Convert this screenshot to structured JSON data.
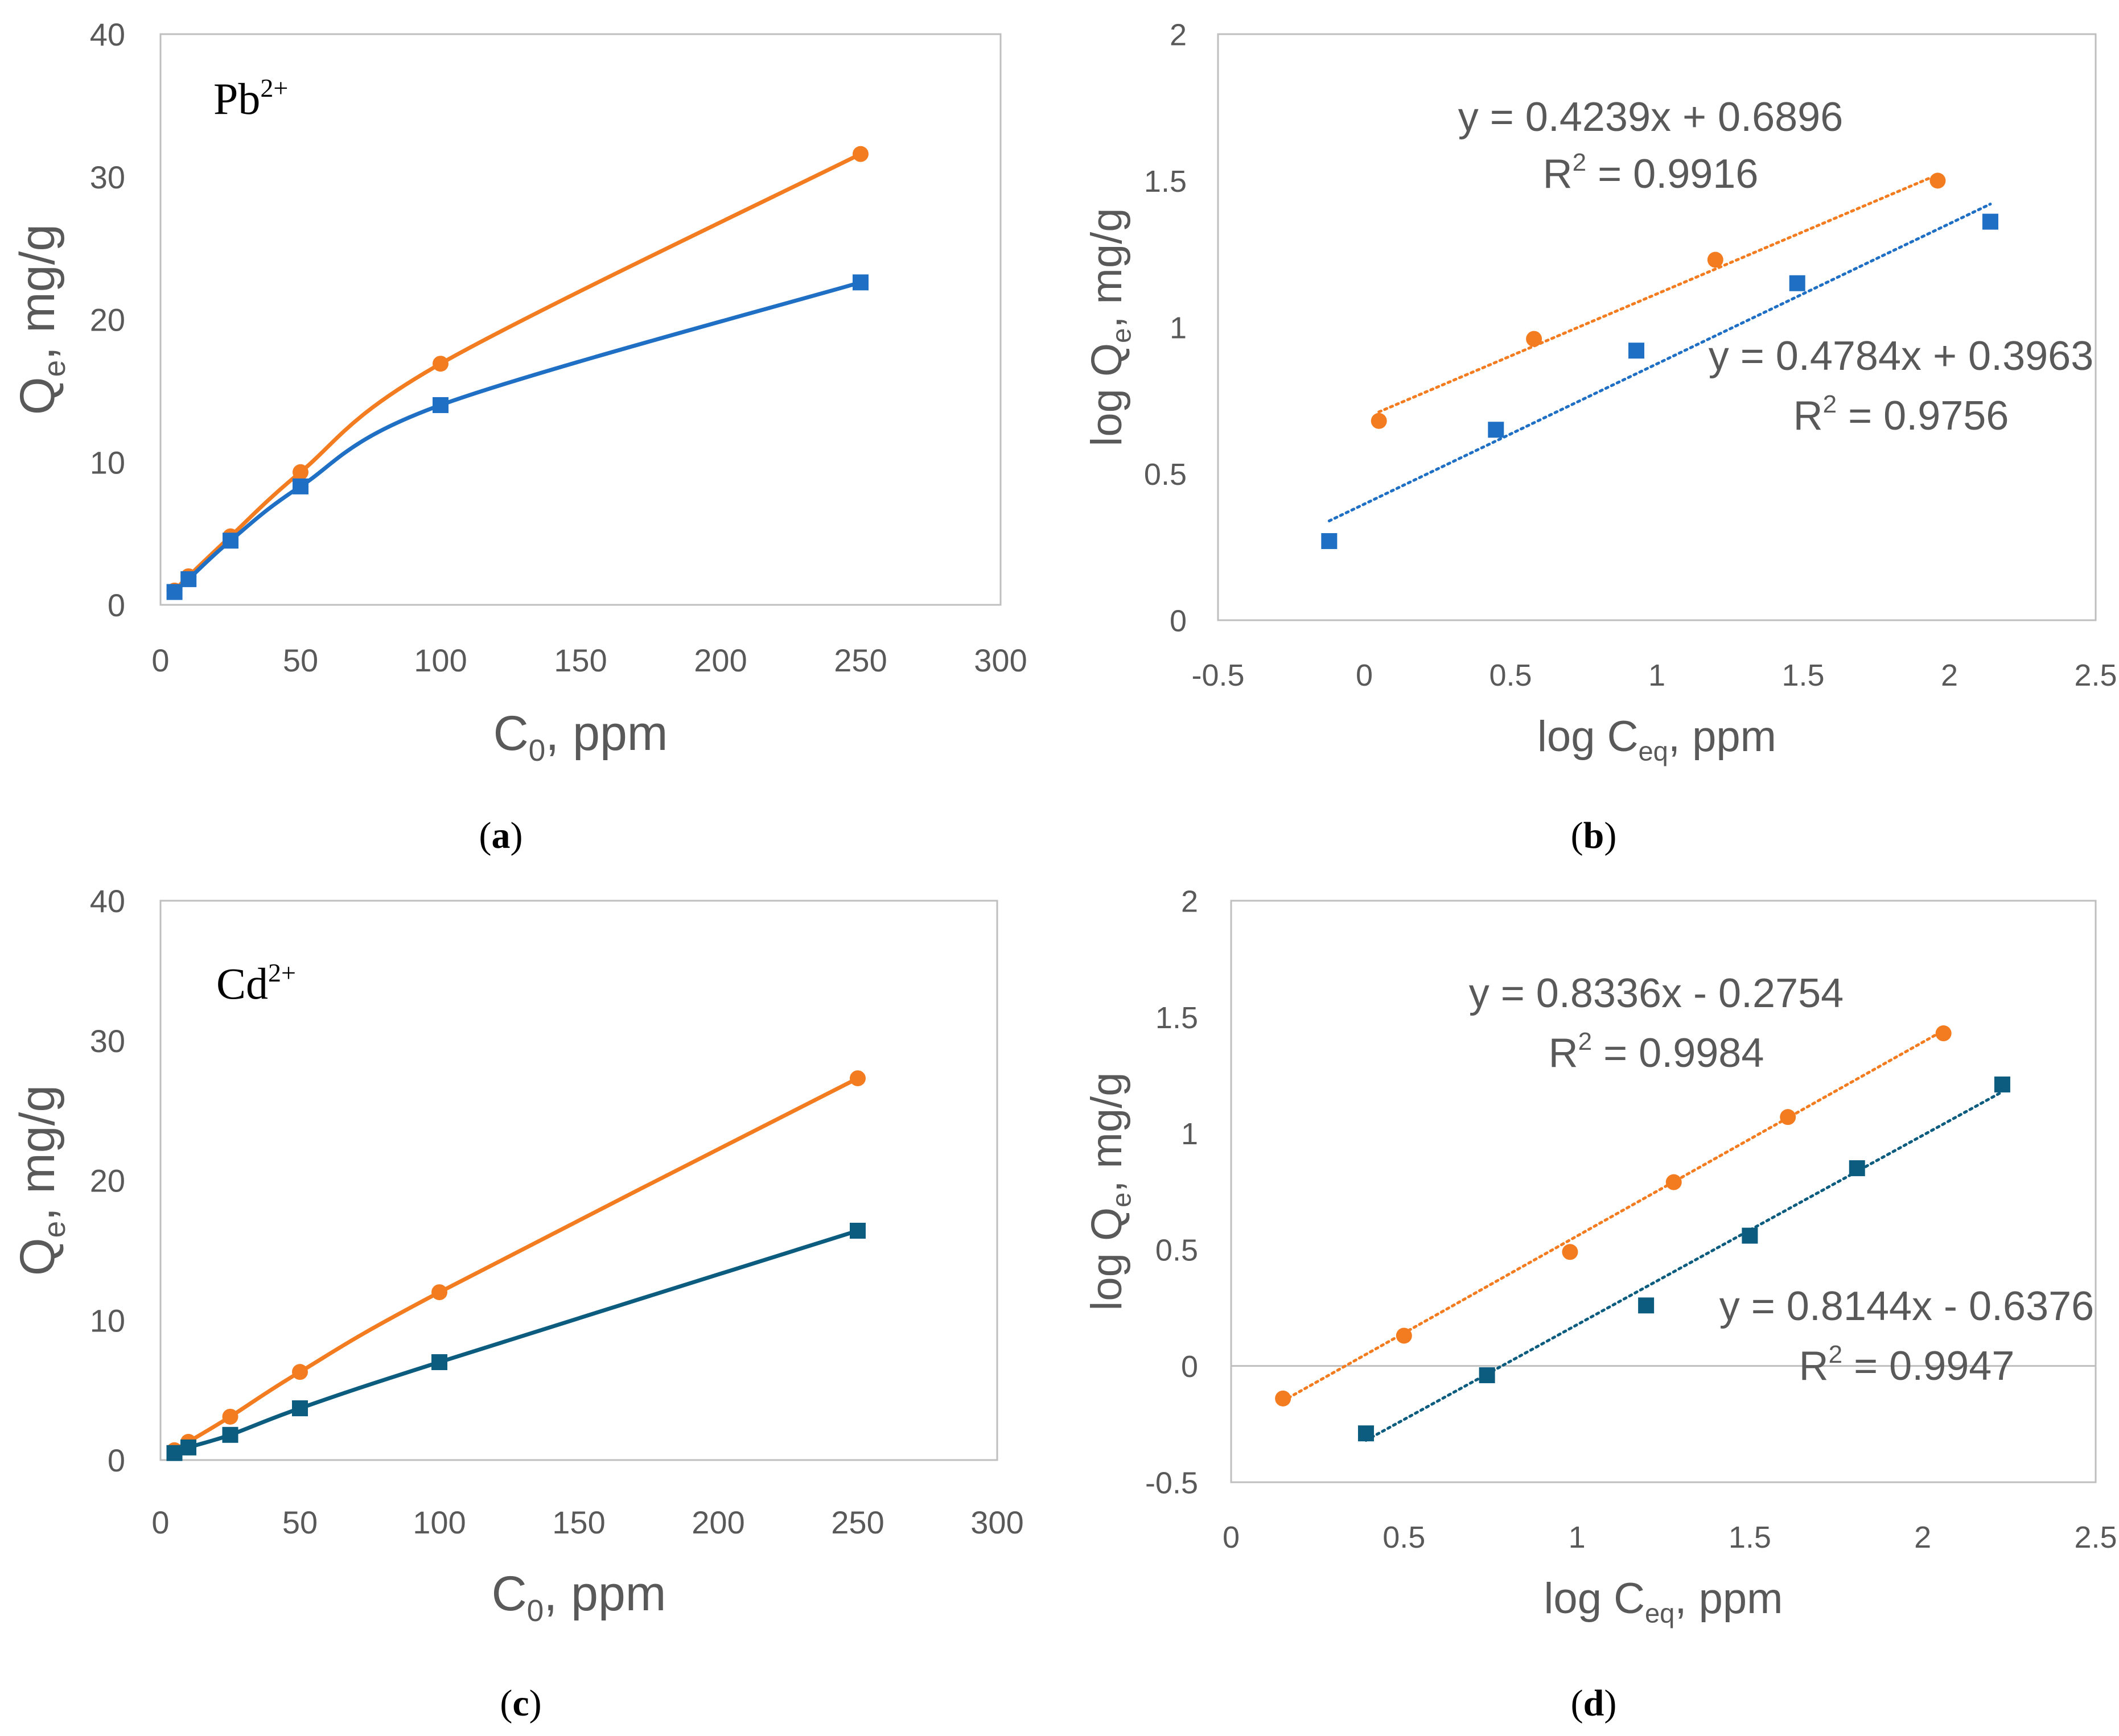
{
  "figure": {
    "panels": [
      {
        "label": "a",
        "label_open": "(",
        "label_close": ")"
      },
      {
        "label": "b",
        "label_open": "(",
        "label_close": ")"
      },
      {
        "label": "c",
        "label_open": "(",
        "label_close": ")"
      },
      {
        "label": "d",
        "label_open": "(",
        "label_close": ")"
      }
    ]
  },
  "colors": {
    "orange": "#F47C20",
    "blue": "#1F6FC4",
    "teal": "#0B5C7E",
    "axis_text": "#595959",
    "grid": "#D9D9D9",
    "frame": "#BFBFBF"
  },
  "chart_data": [
    {
      "id": "a",
      "type": "line",
      "smooth": true,
      "annotation": {
        "ion": "Pb",
        "charge": "2+"
      },
      "xlabel": {
        "main": "C",
        "sub": "0",
        "rest": ", ppm"
      },
      "ylabel": {
        "main": "Q",
        "sub": "e",
        "rest": ", mg/g"
      },
      "xlim": [
        0,
        300
      ],
      "ylim": [
        0,
        40
      ],
      "xticks": [
        0,
        50,
        100,
        150,
        200,
        250,
        300
      ],
      "yticks": [
        0,
        10,
        20,
        30,
        40
      ],
      "grid": false,
      "series": [
        {
          "name": "orange",
          "color": "#F47C20",
          "marker": "circle",
          "x": [
            5,
            10,
            25,
            50,
            100,
            250
          ],
          "y": [
            1.0,
            2.0,
            4.8,
            9.3,
            16.9,
            31.6
          ]
        },
        {
          "name": "blue",
          "color": "#1F6FC4",
          "marker": "square",
          "x": [
            5,
            10,
            25,
            50,
            100,
            250
          ],
          "y": [
            0.9,
            1.8,
            4.5,
            8.3,
            14.0,
            22.6
          ]
        }
      ]
    },
    {
      "id": "b",
      "type": "scatter",
      "xlabel": {
        "main": "log C",
        "sub": "eq",
        "rest": ", ppm"
      },
      "ylabel": {
        "main": "log Q",
        "sub": "e",
        "rest": ", mg/g"
      },
      "xlim": [
        -0.5,
        2.5
      ],
      "ylim": [
        0,
        2
      ],
      "xticks": [
        -0.5,
        0,
        0.5,
        1,
        1.5,
        2,
        2.5
      ],
      "yticks": [
        0,
        0.5,
        1,
        1.5,
        2
      ],
      "xtick_labels": [
        "-0.5",
        "0",
        "0.5",
        "1",
        "1.5",
        "2",
        "2.5"
      ],
      "ytick_labels": [
        "0",
        "0.5",
        "1",
        "1.5",
        "2"
      ],
      "grid": false,
      "series": [
        {
          "name": "orange",
          "color": "#F47C20",
          "marker": "circle",
          "x": [
            0.05,
            0.58,
            1.2,
            1.96
          ],
          "y": [
            0.68,
            0.96,
            1.23,
            1.5
          ],
          "trendline": {
            "slope": 0.4239,
            "intercept": 0.6896,
            "x_range": [
              0.05,
              1.96
            ]
          },
          "equation": "y = 0.4239x + 0.6896",
          "r2_label": "R",
          "r2_sup": "2",
          "r2_value": " = 0.9916"
        },
        {
          "name": "blue",
          "color": "#1F6FC4",
          "marker": "square",
          "x": [
            -0.12,
            0.45,
            0.93,
            1.48,
            2.14
          ],
          "y": [
            0.27,
            0.65,
            0.92,
            1.15,
            1.36
          ],
          "trendline": {
            "slope": 0.4784,
            "intercept": 0.3963,
            "x_range": [
              -0.12,
              2.14
            ]
          },
          "equation": "y = 0.4784x + 0.3963",
          "r2_label": "R",
          "r2_sup": "2",
          "r2_value": " = 0.9756"
        }
      ]
    },
    {
      "id": "c",
      "type": "line",
      "smooth": true,
      "annotation": {
        "ion": "Cd",
        "charge": "2+"
      },
      "xlabel": {
        "main": "C",
        "sub": "0",
        "rest": ", ppm"
      },
      "ylabel": {
        "main": "Q",
        "sub": "e",
        "rest": ", mg/g"
      },
      "xlim": [
        0,
        300
      ],
      "ylim": [
        0,
        40
      ],
      "xticks": [
        0,
        50,
        100,
        150,
        200,
        250,
        300
      ],
      "yticks": [
        0,
        10,
        20,
        30,
        40
      ],
      "grid": false,
      "series": [
        {
          "name": "orange",
          "color": "#F47C20",
          "marker": "circle",
          "x": [
            5,
            10,
            25,
            50,
            100,
            250
          ],
          "y": [
            0.7,
            1.3,
            3.1,
            6.3,
            12.0,
            27.3
          ]
        },
        {
          "name": "teal",
          "color": "#0B5C7E",
          "marker": "square",
          "x": [
            5,
            10,
            25,
            50,
            100,
            250
          ],
          "y": [
            0.5,
            0.9,
            1.8,
            3.7,
            7.0,
            16.4
          ]
        }
      ]
    },
    {
      "id": "d",
      "type": "scatter",
      "xlabel": {
        "main": "log C",
        "sub": "eq",
        "rest": ", ppm"
      },
      "ylabel": {
        "main": "log Q",
        "sub": "e",
        "rest": ", mg/g"
      },
      "xlim": [
        0,
        2.5
      ],
      "ylim": [
        -0.5,
        2
      ],
      "xticks": [
        0,
        0.5,
        1,
        1.5,
        2,
        2.5
      ],
      "yticks": [
        -0.5,
        0,
        0.5,
        1,
        1.5,
        2
      ],
      "xtick_labels": [
        "0",
        "0.5",
        "1",
        "1.5",
        "2",
        "2.5"
      ],
      "ytick_labels": [
        "-0.5",
        "0",
        "0.5",
        "1",
        "1.5",
        "2"
      ],
      "grid": false,
      "series": [
        {
          "name": "orange",
          "color": "#F47C20",
          "marker": "circle",
          "x": [
            0.15,
            0.5,
            0.98,
            1.28,
            1.61,
            2.06
          ],
          "y": [
            -0.14,
            0.13,
            0.49,
            0.79,
            1.07,
            1.43
          ],
          "trendline": {
            "slope": 0.8336,
            "intercept": -0.2754,
            "x_range": [
              0.15,
              2.06
            ]
          },
          "equation": "y = 0.8336x - 0.2754",
          "r2_label": "R",
          "r2_sup": "2",
          "r2_value": " = 0.9984"
        },
        {
          "name": "teal",
          "color": "#0B5C7E",
          "marker": "square",
          "x": [
            0.39,
            0.74,
            1.2,
            1.5,
            1.81,
            2.23
          ],
          "y": [
            -0.29,
            -0.04,
            0.26,
            0.56,
            0.85,
            1.21
          ],
          "trendline": {
            "slope": 0.8144,
            "intercept": -0.6376,
            "x_range": [
              0.39,
              2.23
            ]
          },
          "equation": "y = 0.8144x - 0.6376",
          "r2_label": "R",
          "r2_sup": "2",
          "r2_value": " = 0.9947"
        }
      ]
    }
  ]
}
